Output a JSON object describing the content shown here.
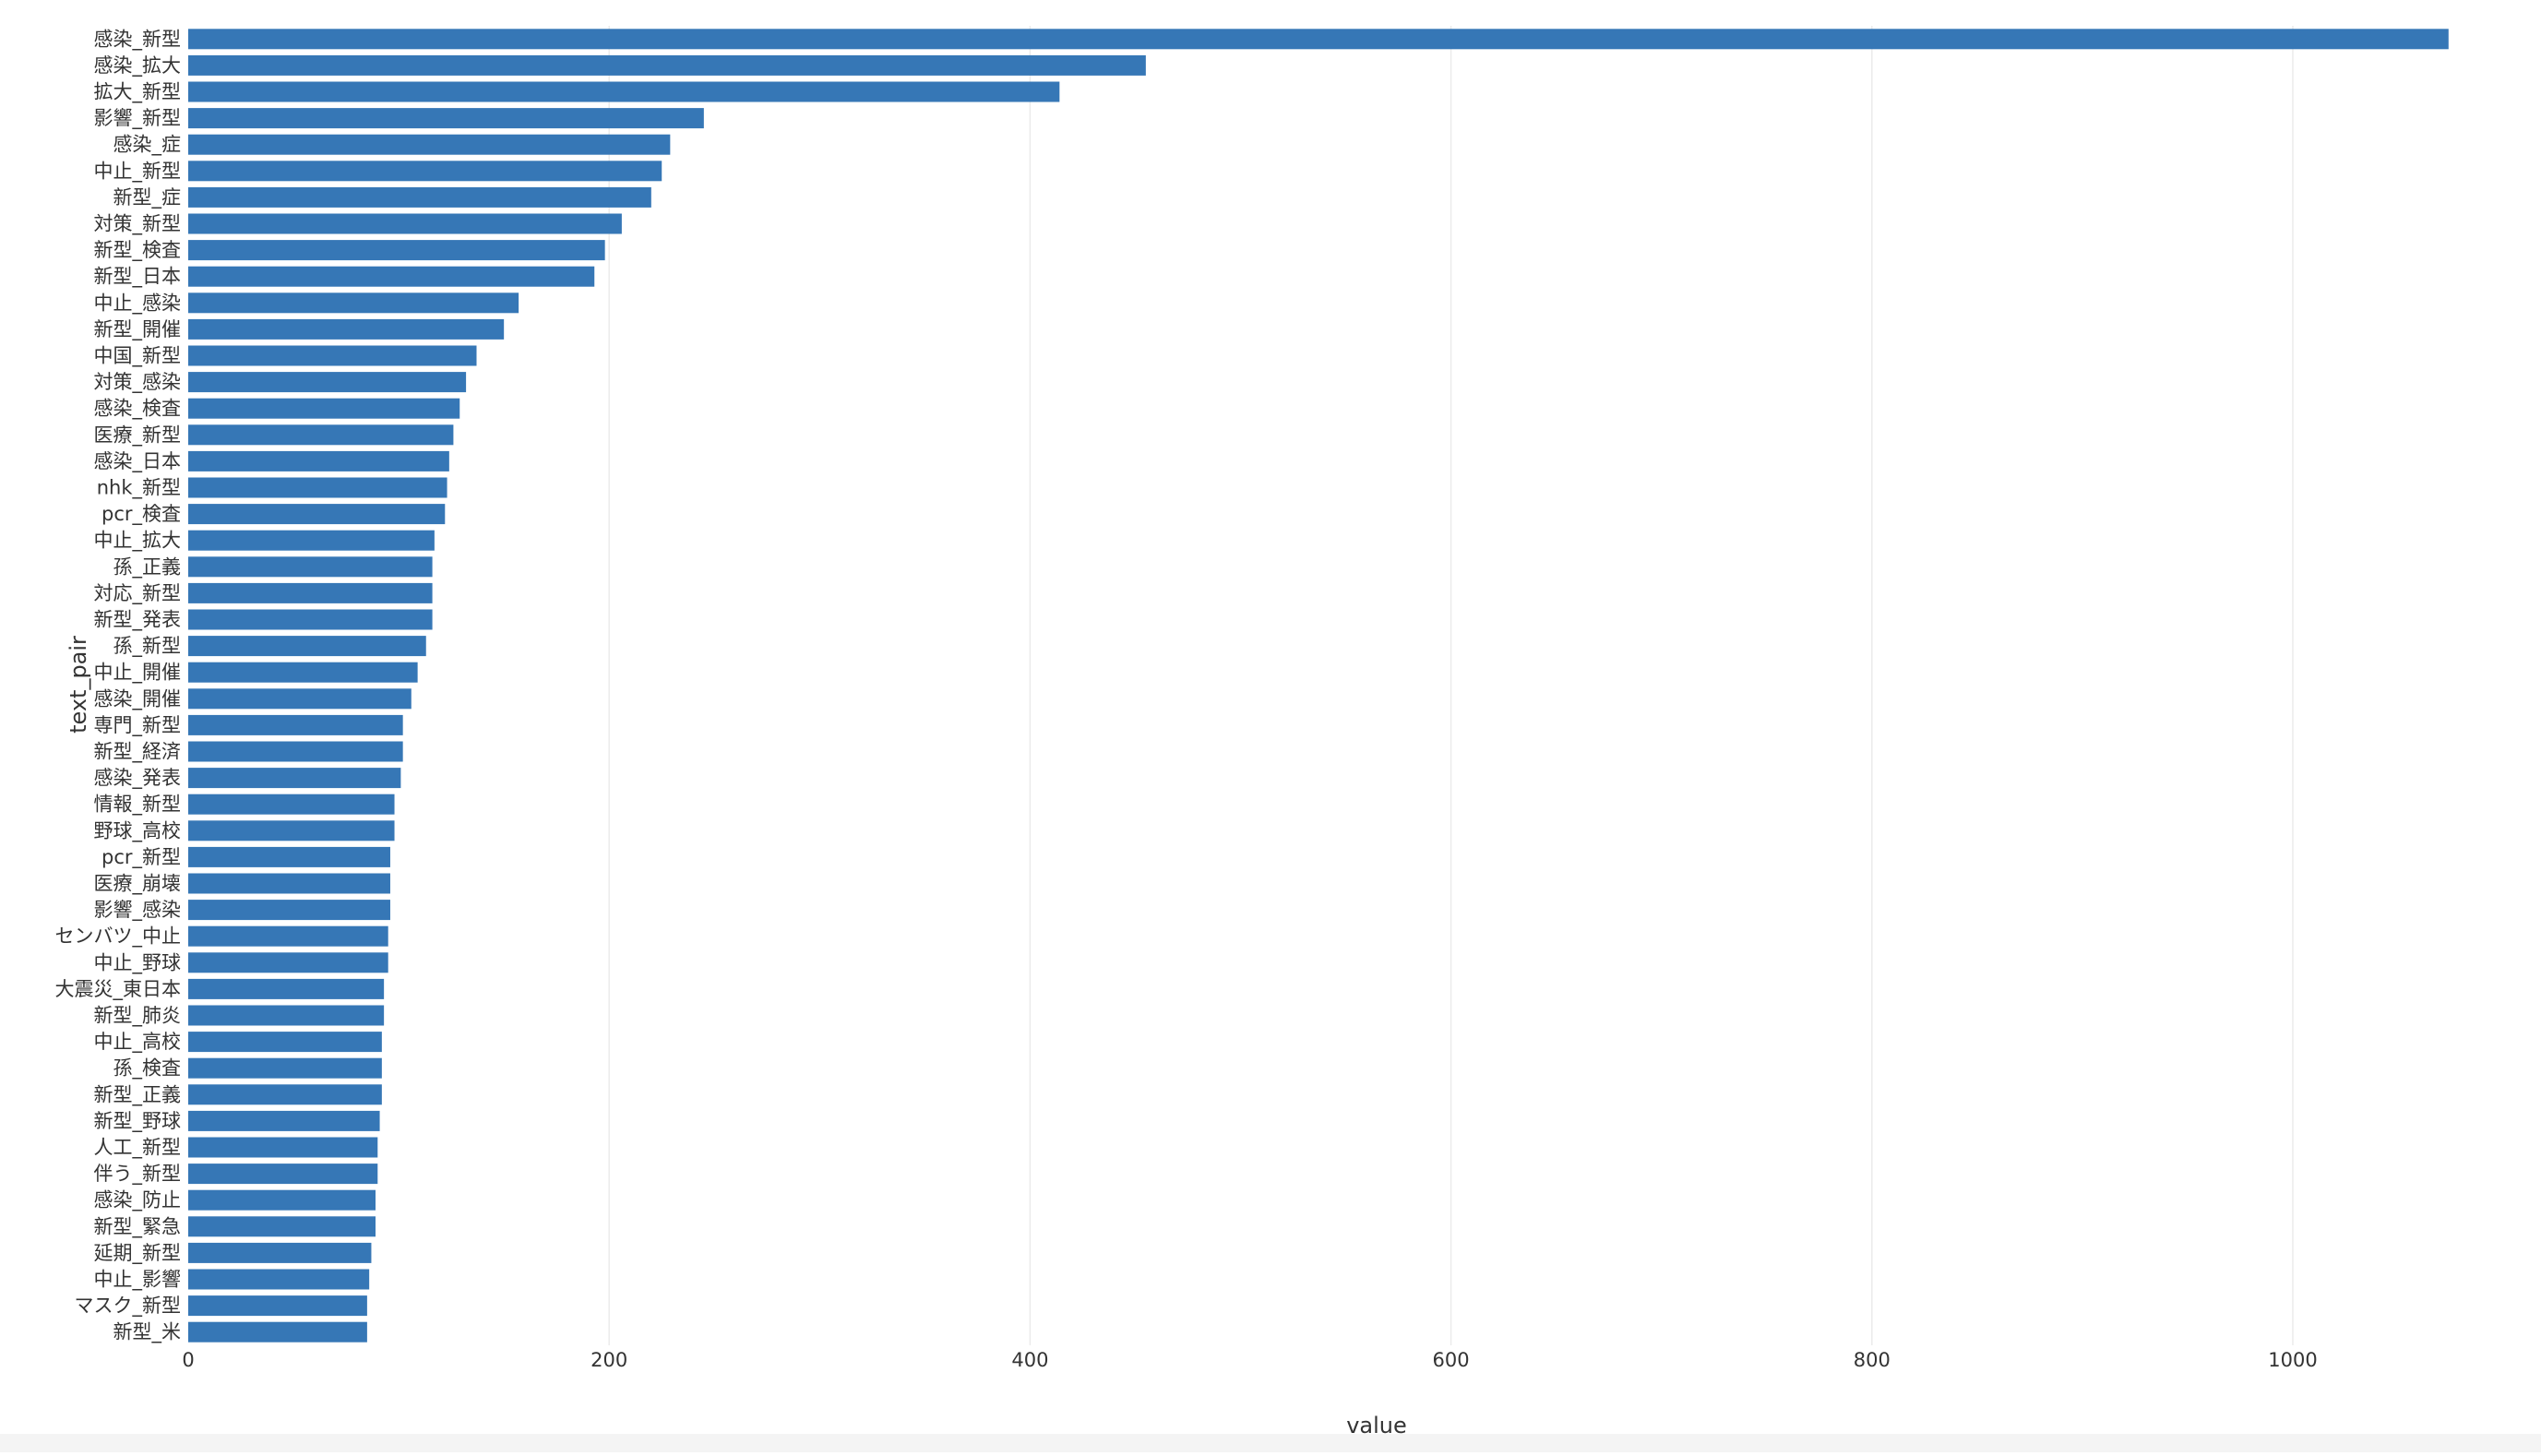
{
  "chart_data": {
    "type": "bar",
    "orientation": "horizontal",
    "xlabel": "value",
    "ylabel": "text_pair",
    "xlim": [
      0,
      1075
    ],
    "xticks": [
      0,
      200,
      400,
      600,
      800,
      1000
    ],
    "grid": "vertical",
    "bar_color": "#3677b6",
    "categories": [
      "感染_新型",
      "感染_拡大",
      "拡大_新型",
      "影響_新型",
      "感染_症",
      "中止_新型",
      "新型_症",
      "対策_新型",
      "新型_検査",
      "新型_日本",
      "中止_感染",
      "新型_開催",
      "中国_新型",
      "対策_感染",
      "感染_検査",
      "医療_新型",
      "感染_日本",
      "nhk_新型",
      "pcr_検査",
      "中止_拡大",
      "孫_正義",
      "対応_新型",
      "新型_発表",
      "孫_新型",
      "中止_開催",
      "感染_開催",
      "専門_新型",
      "新型_経済",
      "感染_発表",
      "情報_新型",
      "野球_高校",
      "pcr_新型",
      "医療_崩壊",
      "影響_感染",
      "センバツ_中止",
      "中止_野球",
      "大震災_東日本",
      "新型_肺炎",
      "中止_高校",
      "孫_検査",
      "新型_正義",
      "新型_野球",
      "人工_新型",
      "伴う_新型",
      "感染_防止",
      "新型_緊急",
      "延期_新型",
      "中止_影響",
      "マスク_新型",
      "新型_米"
    ],
    "values": [
      1074,
      455,
      414,
      245,
      229,
      225,
      220,
      206,
      198,
      193,
      157,
      150,
      137,
      132,
      129,
      126,
      124,
      123,
      122,
      117,
      116,
      116,
      116,
      113,
      109,
      106,
      102,
      102,
      101,
      98,
      98,
      96,
      96,
      96,
      95,
      95,
      93,
      93,
      92,
      92,
      92,
      91,
      90,
      90,
      89,
      89,
      87,
      86,
      85,
      85
    ]
  }
}
